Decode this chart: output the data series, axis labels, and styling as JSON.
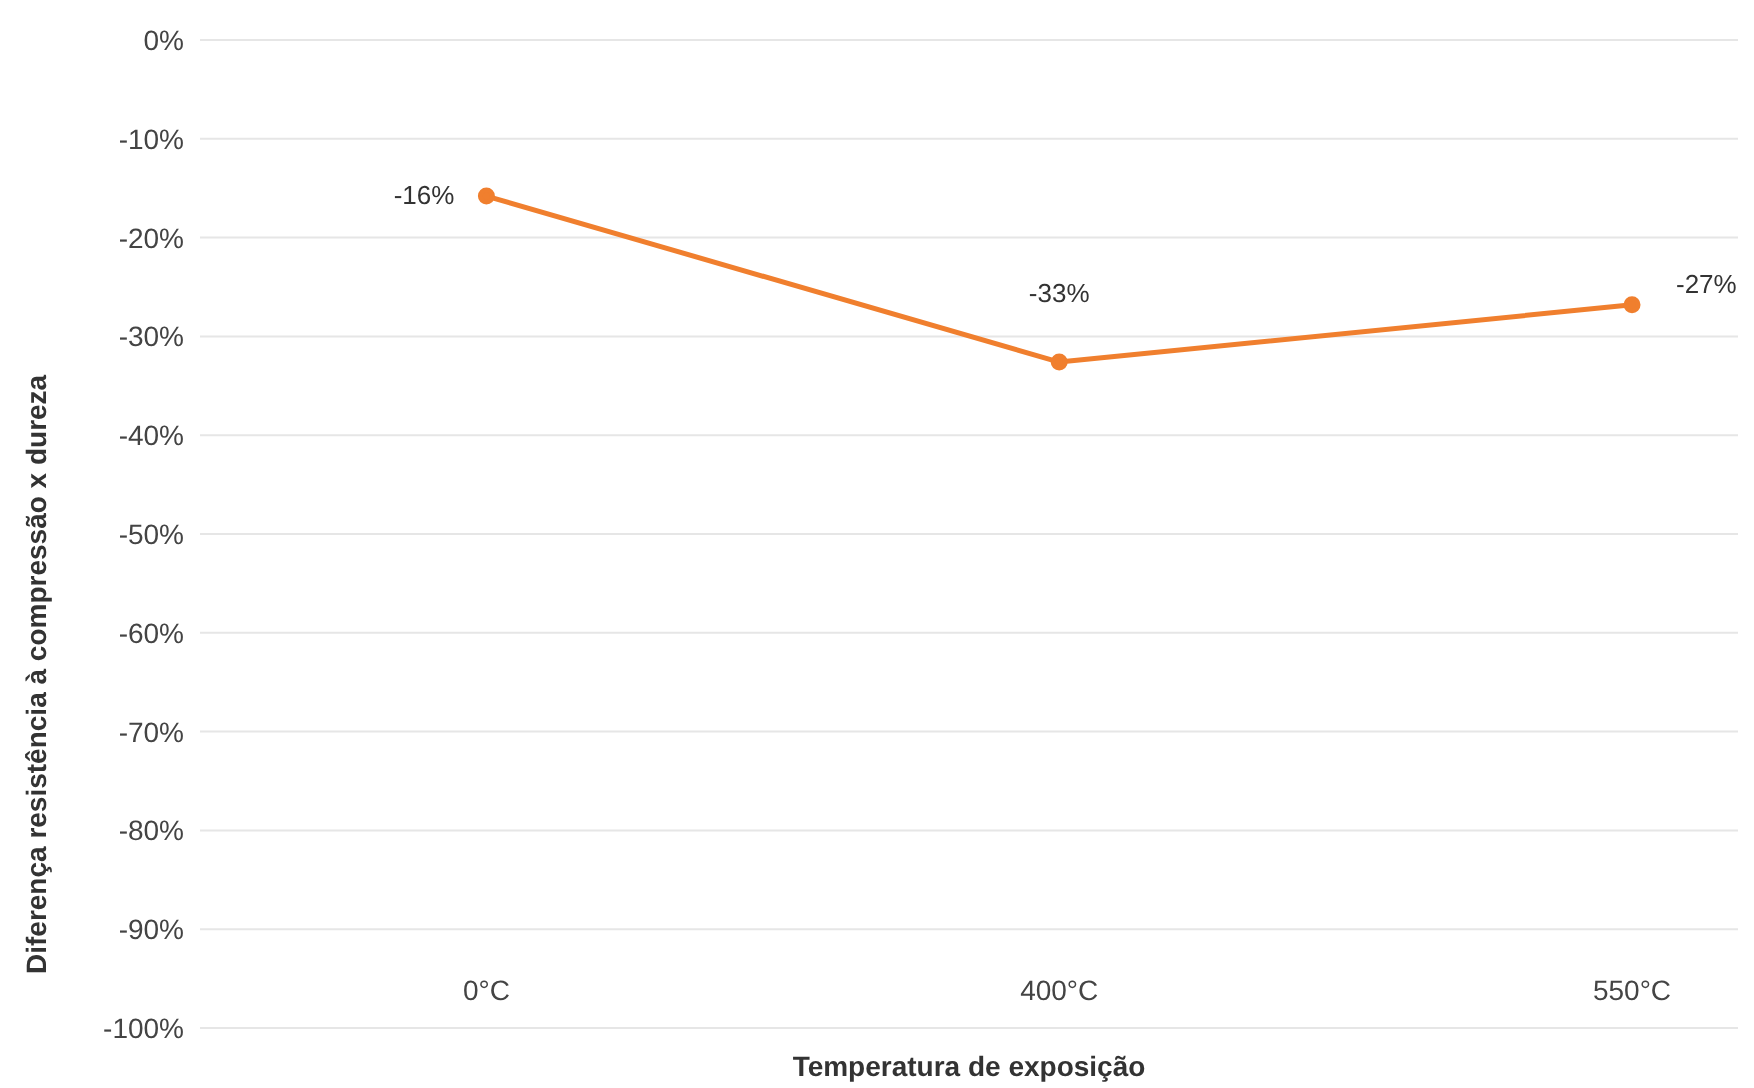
{
  "chart_data": {
    "type": "line",
    "xlabel": "Temperatura de exposição",
    "ylabel": "Diferença resistência à compressão x dureza",
    "categories": [
      "0°C",
      "400°C",
      "550°C"
    ],
    "series": [
      {
        "color": "#f07f2e",
        "values": [
          -15.8,
          -32.6,
          -26.8
        ],
        "value_labels": [
          "-16%",
          "-33%",
          "-27%"
        ]
      }
    ],
    "ylim": [
      -100,
      0
    ],
    "yticks": [
      {
        "value": 0,
        "label": "0%"
      },
      {
        "value": -10,
        "label": "-10%"
      },
      {
        "value": -20,
        "label": "-20%"
      },
      {
        "value": -30,
        "label": "-30%"
      },
      {
        "value": -40,
        "label": "-40%"
      },
      {
        "value": -50,
        "label": "-50%"
      },
      {
        "value": -60,
        "label": "-60%"
      },
      {
        "value": -70,
        "label": "-70%"
      },
      {
        "value": -80,
        "label": "-80%"
      },
      {
        "value": -90,
        "label": "-90%"
      },
      {
        "value": -100,
        "label": "-100%"
      }
    ],
    "grid": "y",
    "marker": "circle",
    "line_style": "solid"
  }
}
